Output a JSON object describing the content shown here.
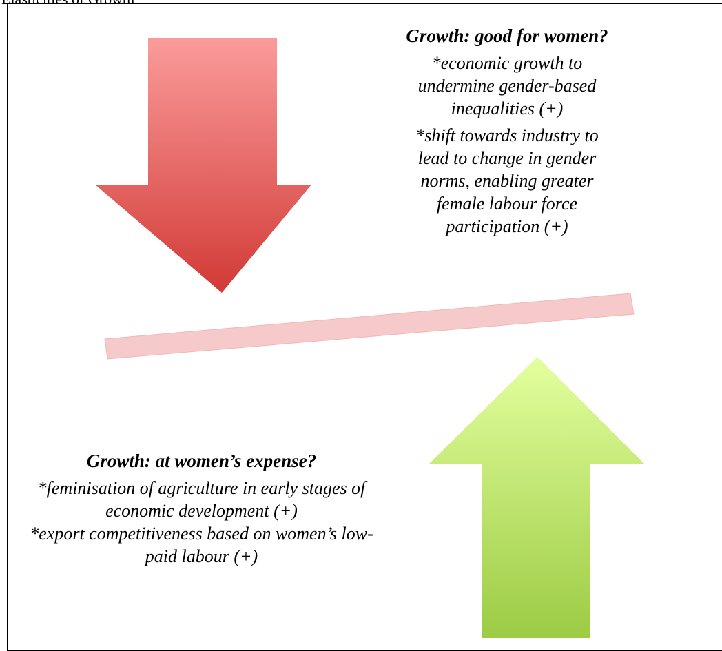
{
  "title": "Elasticities of Growth",
  "good": {
    "heading": "Growth: good for women?",
    "points": [
      "*economic growth to undermine gender-based inequalities (+)",
      "*shift towards industry to lead to change in gender norms, enabling greater female labour force participation (+)"
    ]
  },
  "expense": {
    "heading": "Growth: at women’s expense?",
    "points": [
      "*feminisation of agriculture in early stages of economic development (+)",
      "*export competitiveness based on women’s low-paid labour (+)"
    ]
  }
}
